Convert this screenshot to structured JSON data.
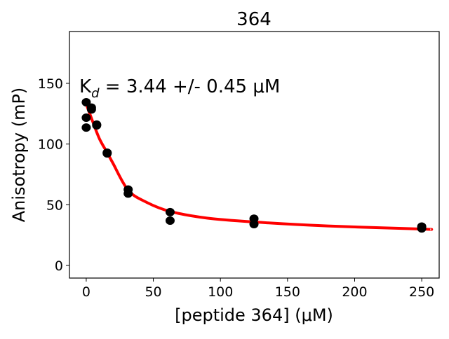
{
  "chart_data": {
    "type": "scatter",
    "title": "364",
    "xlabel": "[peptide 364] (μM)",
    "ylabel": "Anisotropy (mP)",
    "annotation": {
      "prefix": "K",
      "subscript": "d",
      "text": " = 3.44 +/- 0.45 μM"
    },
    "xlim": [
      -12.5,
      263
    ],
    "ylim": [
      -10.4,
      192.7
    ],
    "xticks": [
      0,
      50,
      100,
      150,
      200,
      250
    ],
    "yticks": [
      0,
      50,
      100,
      150
    ],
    "grid": false,
    "series": [
      {
        "name": "data",
        "color": "#000000",
        "x": [
          0,
          0,
          0,
          3.9,
          3.9,
          7.8,
          7.8,
          15.6,
          15.6,
          31.25,
          31.25,
          62.5,
          62.5,
          125,
          125,
          250,
          250
        ],
        "y": [
          134.4,
          121.7,
          113.6,
          130,
          128.5,
          116,
          115.4,
          92.9,
          92.3,
          62.5,
          59.2,
          43.9,
          36.9,
          38.5,
          34,
          32,
          30.5
        ]
      },
      {
        "name": "fit",
        "color": "#ff0000",
        "x": [
          0,
          5,
          10,
          15.6,
          20,
          31.25,
          45,
          62.5,
          90,
          125,
          180,
          250,
          256
        ],
        "y": [
          133,
          118,
          104,
          93,
          84,
          62,
          52,
          44.5,
          39,
          35.8,
          32.5,
          30,
          29.7
        ]
      }
    ]
  }
}
